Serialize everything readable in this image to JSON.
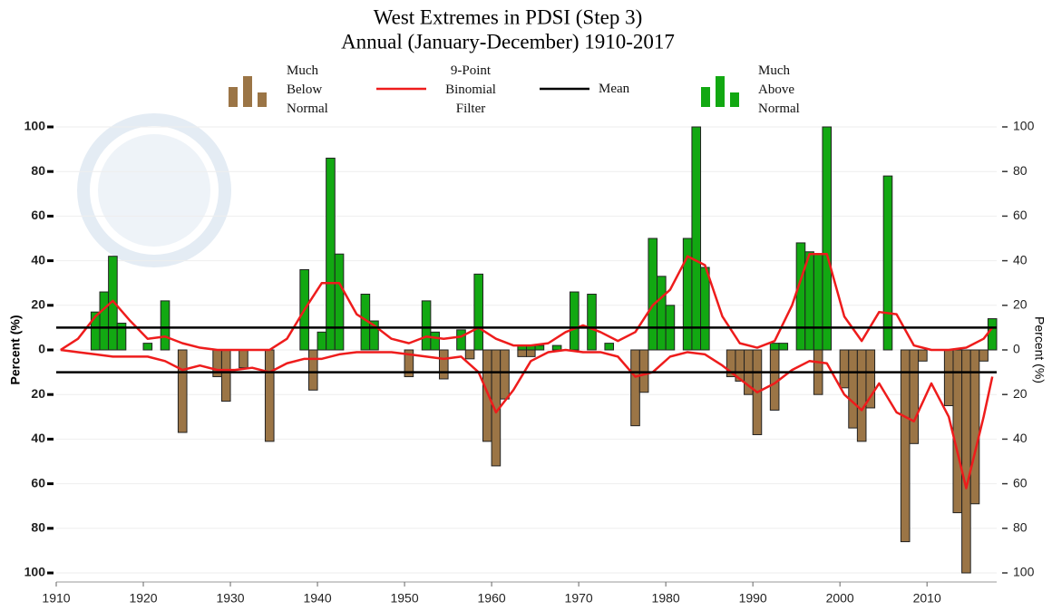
{
  "chart_data": {
    "type": "bar",
    "title": "West Extremes in PDSI (Step 3)",
    "subtitle": "Annual (January-December) 1910-2017",
    "y_label": "Percent (%)",
    "y2_label": "Percent (%)",
    "xlim": [
      1910,
      2018
    ],
    "xticks": [
      1910,
      1920,
      1930,
      1940,
      1950,
      1960,
      1970,
      1980,
      1990,
      2000,
      2010
    ],
    "ylim": [
      -100,
      100
    ],
    "yticks": [
      {
        "value": -100,
        "label": "100"
      },
      {
        "value": -80,
        "label": "80"
      },
      {
        "value": -60,
        "label": "60"
      },
      {
        "value": -40,
        "label": "40"
      },
      {
        "value": -20,
        "label": "20"
      },
      0,
      20,
      40,
      60,
      80,
      100
    ],
    "y2lim": [
      -100,
      100
    ],
    "y2ticks": [
      {
        "value": -100,
        "label": "100"
      },
      {
        "value": -80,
        "label": "80"
      },
      {
        "value": -60,
        "label": "60"
      },
      {
        "value": -40,
        "label": "40"
      },
      {
        "value": -20,
        "label": "20"
      },
      0,
      20,
      40,
      60,
      80,
      100
    ],
    "grid": true,
    "x": [
      1910,
      1911,
      1912,
      1913,
      1914,
      1915,
      1916,
      1917,
      1918,
      1919,
      1920,
      1921,
      1922,
      1923,
      1924,
      1925,
      1926,
      1927,
      1928,
      1929,
      1930,
      1931,
      1932,
      1933,
      1934,
      1935,
      1936,
      1937,
      1938,
      1939,
      1940,
      1941,
      1942,
      1943,
      1944,
      1945,
      1946,
      1947,
      1948,
      1949,
      1950,
      1951,
      1952,
      1953,
      1954,
      1955,
      1956,
      1957,
      1958,
      1959,
      1960,
      1961,
      1962,
      1963,
      1964,
      1965,
      1966,
      1967,
      1968,
      1969,
      1970,
      1971,
      1972,
      1973,
      1974,
      1975,
      1976,
      1977,
      1978,
      1979,
      1980,
      1981,
      1982,
      1983,
      1984,
      1985,
      1986,
      1987,
      1988,
      1989,
      1990,
      1991,
      1992,
      1993,
      1994,
      1995,
      1996,
      1997,
      1998,
      1999,
      2000,
      2001,
      2002,
      2003,
      2004,
      2005,
      2006,
      2007,
      2008,
      2009,
      2010,
      2011,
      2012,
      2013,
      2014,
      2015,
      2016,
      2017
    ],
    "series": [
      {
        "name": "Much Below Normal",
        "color": "#9b7546",
        "values": [
          0,
          0,
          0,
          0,
          0,
          0,
          0,
          0,
          0,
          0,
          0,
          0,
          0,
          0,
          -37,
          0,
          0,
          0,
          -12,
          -23,
          0,
          -8,
          0,
          0,
          -41,
          0,
          0,
          0,
          0,
          -18,
          0,
          0,
          0,
          0,
          0,
          0,
          0,
          0,
          0,
          0,
          -12,
          0,
          0,
          0,
          -13,
          0,
          0,
          -4,
          0,
          -41,
          -52,
          -22,
          0,
          -3,
          -3,
          0,
          0,
          0,
          0,
          0,
          0,
          0,
          0,
          0,
          0,
          0,
          -34,
          -19,
          0,
          0,
          0,
          0,
          0,
          0,
          0,
          0,
          0,
          -12,
          -14,
          -20,
          -38,
          0,
          -27,
          0,
          0,
          0,
          0,
          -20,
          0,
          0,
          -17,
          -35,
          -41,
          -26,
          0,
          0,
          0,
          -86,
          -42,
          -5,
          0,
          0,
          -25,
          -73,
          -100,
          -69,
          -5,
          0
        ]
      },
      {
        "name": "Much Above Normal",
        "color": "#12a812",
        "values": [
          0,
          0,
          0,
          0,
          17,
          26,
          42,
          12,
          0,
          0,
          3,
          0,
          22,
          0,
          0,
          0,
          0,
          0,
          0,
          0,
          0,
          0,
          0,
          0,
          0,
          0,
          0,
          0,
          36,
          0,
          8,
          86,
          43,
          0,
          0,
          25,
          13,
          0,
          0,
          0,
          0,
          0,
          22,
          8,
          0,
          0,
          9,
          0,
          34,
          0,
          0,
          0,
          0,
          2,
          2,
          2,
          0,
          2,
          0,
          26,
          0,
          25,
          0,
          3,
          0,
          0,
          0,
          0,
          50,
          33,
          20,
          0,
          50,
          100,
          37,
          0,
          0,
          0,
          0,
          0,
          0,
          0,
          3,
          3,
          0,
          48,
          44,
          43,
          100,
          0,
          0,
          0,
          0,
          0,
          0,
          78,
          0,
          0,
          0,
          0,
          0,
          0,
          0,
          0,
          0,
          0,
          0,
          14
        ]
      }
    ],
    "filter": {
      "name": "9-Point Binomial Filter",
      "color": "#ee1c1c",
      "x": [
        1910,
        1912,
        1914,
        1916,
        1918,
        1920,
        1922,
        1924,
        1926,
        1928,
        1930,
        1932,
        1934,
        1936,
        1938,
        1940,
        1942,
        1944,
        1946,
        1948,
        1950,
        1952,
        1954,
        1956,
        1958,
        1960,
        1962,
        1964,
        1966,
        1968,
        1970,
        1972,
        1974,
        1976,
        1978,
        1980,
        1982,
        1984,
        1986,
        1988,
        1990,
        1992,
        1994,
        1996,
        1998,
        2000,
        2002,
        2004,
        2006,
        2008,
        2010,
        2012,
        2014,
        2016,
        2017
      ],
      "upper": [
        0,
        5,
        15,
        22,
        13,
        5,
        6,
        3,
        1,
        0,
        0,
        0,
        0,
        5,
        18,
        30,
        30,
        16,
        11,
        5,
        3,
        6,
        5,
        6,
        10,
        5,
        2,
        2,
        3,
        8,
        11,
        8,
        4,
        8,
        20,
        27,
        42,
        38,
        15,
        3,
        1,
        4,
        20,
        43,
        43,
        15,
        4,
        17,
        16,
        2,
        0,
        0,
        1,
        5,
        10
      ],
      "lower": [
        0,
        -1,
        -2,
        -3,
        -3,
        -3,
        -5,
        -9,
        -7,
        -9,
        -9,
        -8,
        -10,
        -6,
        -4,
        -4,
        -2,
        -1,
        -1,
        -1,
        -2,
        -3,
        -4,
        -3,
        -10,
        -28,
        -18,
        -5,
        -1,
        0,
        -1,
        -1,
        -3,
        -12,
        -10,
        -3,
        -1,
        -2,
        -7,
        -13,
        -19,
        -15,
        -9,
        -5,
        -6,
        -20,
        -27,
        -15,
        -28,
        -32,
        -15,
        -30,
        -62,
        -30,
        -12
      ]
    },
    "mean": {
      "name": "Mean",
      "color": "#000000",
      "values": [
        10,
        -10
      ]
    }
  }
}
